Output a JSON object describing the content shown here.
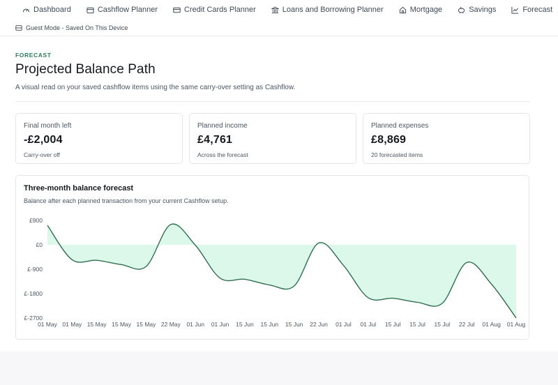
{
  "nav": {
    "items": [
      {
        "label": "Dashboard",
        "icon": "dashboard-icon"
      },
      {
        "label": "Cashflow Planner",
        "icon": "wallet-icon"
      },
      {
        "label": "Credit Cards Planner",
        "icon": "credit-card-icon"
      },
      {
        "label": "Loans and Borrowing Planner",
        "icon": "bank-icon"
      },
      {
        "label": "Mortgage",
        "icon": "home-icon"
      },
      {
        "label": "Savings",
        "icon": "piggy-bank-icon"
      },
      {
        "label": "Forecast",
        "icon": "line-chart-icon"
      }
    ],
    "settings_icon": "gear-icon"
  },
  "guest_mode": {
    "label": "Guest Mode - Saved On This Device",
    "icon": "storage-icon"
  },
  "page": {
    "eyebrow": "FORECAST",
    "title": "Projected Balance Path",
    "subtitle": "A visual read on your saved cashflow items using the same carry-over setting as Cashflow."
  },
  "cards": [
    {
      "label": "Final month left",
      "value": "-£2,004",
      "note": "Carry-over off"
    },
    {
      "label": "Planned income",
      "value": "£4,761",
      "note": "Across the forecast"
    },
    {
      "label": "Planned expenses",
      "value": "£8,869",
      "note": "20 forecasted items"
    }
  ],
  "chart": {
    "title": "Three-month balance forecast",
    "subtitle": "Balance after each planned transaction from your current Cashflow setup."
  },
  "chart_data": {
    "type": "area",
    "ytick_labels": [
      "£900",
      "£0",
      "£-900",
      "£-1800",
      "£-2700"
    ],
    "ytick_values": [
      900,
      0,
      -900,
      -1800,
      -2700
    ],
    "ylim": [
      -2700,
      900
    ],
    "x": [
      "01 May",
      "01 May",
      "15 May",
      "15 May",
      "15 May",
      "22 May",
      "01 Jun",
      "01 Jun",
      "15 Jun",
      "15 Jun",
      "15 Jun",
      "22 Jun",
      "01 Jul",
      "01 Jul",
      "15 Jul",
      "15 Jul",
      "15 Jul",
      "22 Jul",
      "01 Aug",
      "01 Aug"
    ],
    "series": [
      {
        "values": [
          720,
          -550,
          -570,
          -730,
          -800,
          750,
          -20,
          -1230,
          -1270,
          -1480,
          -1520,
          70,
          -760,
          -1950,
          -1970,
          -2120,
          -2160,
          -650,
          -1450,
          -2700
        ]
      }
    ],
    "colors": {
      "line": "#2f6e4f",
      "fill": "#dcf8ea"
    },
    "grid": false,
    "legend": "none"
  }
}
